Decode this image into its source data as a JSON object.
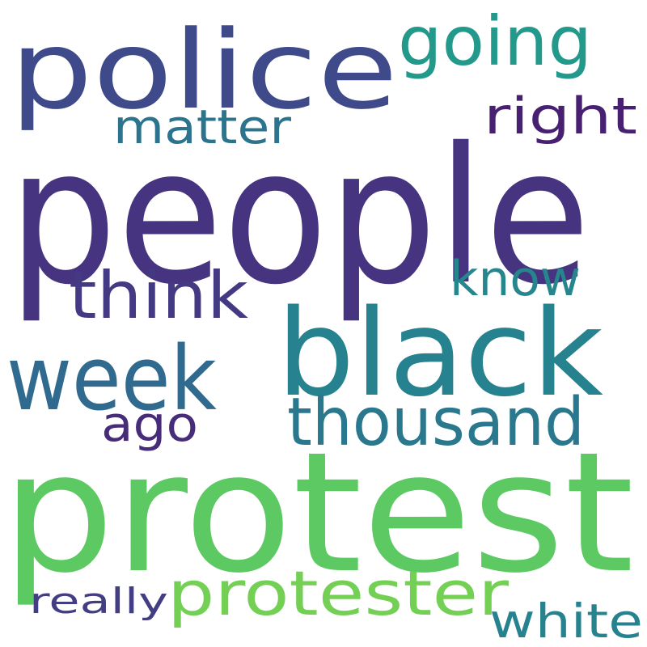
{
  "words": [
    {
      "id": "people",
      "text": "people",
      "color": "#463480"
    },
    {
      "id": "protest",
      "text": "protest",
      "color": "#5DC962"
    },
    {
      "id": "police",
      "text": "police",
      "color": "#3E4A89"
    },
    {
      "id": "black",
      "text": "black",
      "color": "#26828E"
    },
    {
      "id": "week",
      "text": "week",
      "color": "#306A8E"
    },
    {
      "id": "going",
      "text": "going",
      "color": "#23998B"
    },
    {
      "id": "thousand",
      "text": "thousand",
      "color": "#2A788E"
    },
    {
      "id": "think",
      "text": "think",
      "color": "#443983"
    },
    {
      "id": "protester",
      "text": "protester",
      "color": "#73D055"
    },
    {
      "id": "right",
      "text": "right",
      "color": "#482071"
    },
    {
      "id": "matter",
      "text": "matter",
      "color": "#2C738E"
    },
    {
      "id": "know",
      "text": "know",
      "color": "#26868E"
    },
    {
      "id": "ago",
      "text": "ago",
      "color": "#472C7A"
    },
    {
      "id": "white",
      "text": "white",
      "color": "#26828E"
    },
    {
      "id": "really",
      "text": "really",
      "color": "#433D84"
    }
  ]
}
